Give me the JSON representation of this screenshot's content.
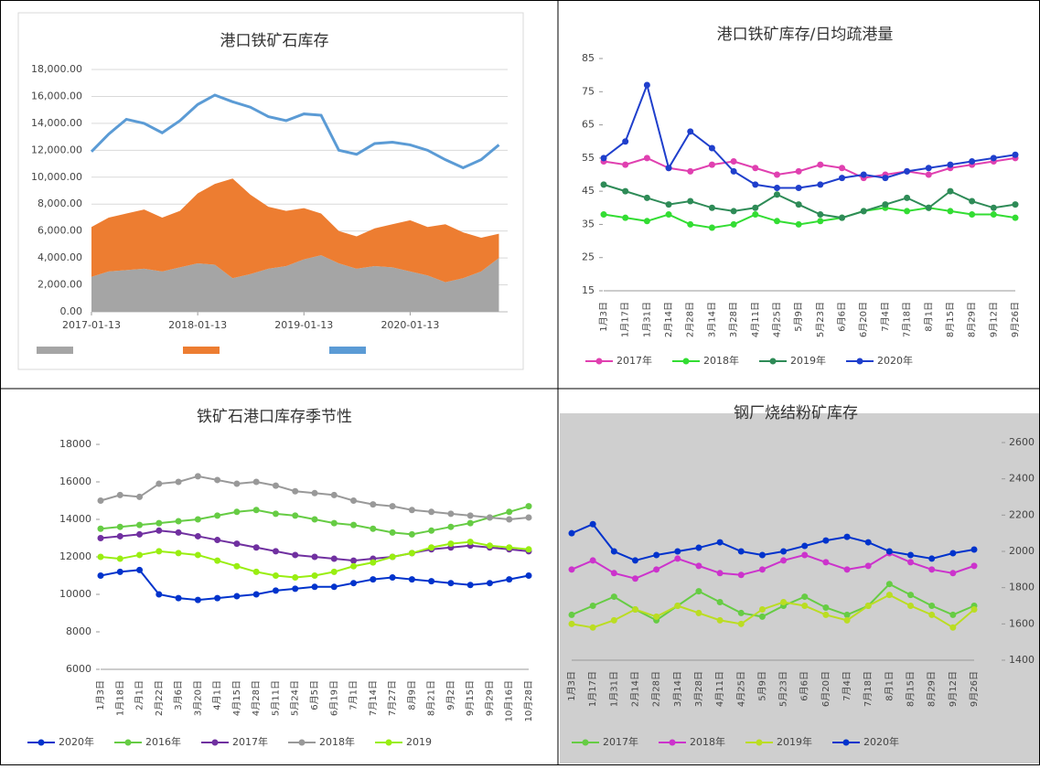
{
  "chart_data": [
    {
      "type": "area",
      "title": "港口铁矿石库存",
      "x": [
        "2017-01-13",
        "2017-03-13",
        "2017-05-13",
        "2017-07-13",
        "2017-09-13",
        "2017-11-13",
        "2018-01-13",
        "2018-03-13",
        "2018-05-13",
        "2018-07-13",
        "2018-09-13",
        "2018-11-13",
        "2019-01-13",
        "2019-03-13",
        "2019-05-13",
        "2019-07-13",
        "2019-09-13",
        "2019-11-13",
        "2020-01-13",
        "2020-03-13",
        "2020-05-13",
        "2020-07-13",
        "2020-09-13",
        "2020-11-13"
      ],
      "xlim": [
        "2017-01-13",
        "2020-12-13"
      ],
      "xticks": [
        "2017-01-13",
        "2018-01-13",
        "2019-01-13",
        "2020-01-13"
      ],
      "ylim": [
        0,
        18000
      ],
      "yticks": [
        {
          "value": 0,
          "label": "0.00"
        },
        {
          "value": 2000,
          "label": "2,000.00"
        },
        {
          "value": 4000,
          "label": "4,000.00"
        },
        {
          "value": 6000,
          "label": "6,000.00"
        },
        {
          "value": 8000,
          "label": "8,000.00"
        },
        {
          "value": 10000,
          "label": "10,000.00"
        },
        {
          "value": 12000,
          "label": "12,000.00"
        },
        {
          "value": 14000,
          "label": "14,000.00"
        },
        {
          "value": 16000,
          "label": "16,000.00"
        },
        {
          "value": 18000,
          "label": "18,000.00"
        }
      ],
      "grid": true,
      "series": [
        {
          "kind": "area",
          "color": "#a5a5a5",
          "values": [
            2600,
            3000,
            3100,
            3200,
            3000,
            3300,
            3600,
            3500,
            2500,
            2800,
            3200,
            3400,
            3900,
            4200,
            3600,
            3200,
            3400,
            3300,
            3000,
            2700,
            2200,
            2500,
            3000,
            4000
          ]
        },
        {
          "kind": "area",
          "color": "#ed7d31",
          "values": [
            3700,
            4000,
            4200,
            4400,
            4000,
            4200,
            5200,
            6000,
            7400,
            5900,
            4600,
            4100,
            3800,
            3100,
            2400,
            2400,
            2800,
            3200,
            3800,
            3600,
            4300,
            3400,
            2500,
            1800
          ]
        },
        {
          "kind": "line",
          "color": "#5b9bd5",
          "values": [
            11900,
            13200,
            14300,
            14000,
            13300,
            14200,
            15400,
            16100,
            15600,
            15200,
            14500,
            14200,
            14700,
            14600,
            12000,
            11700,
            12500,
            12600,
            12400,
            12000,
            11300,
            10700,
            11300,
            12400
          ]
        }
      ]
    },
    {
      "type": "line",
      "title": "港口铁矿库存/日均疏港量",
      "categories": [
        "1月3日",
        "1月17日",
        "1月31日",
        "2月14日",
        "2月28日",
        "3月14日",
        "3月28日",
        "4月11日",
        "4月25日",
        "5月9日",
        "5月23日",
        "6月6日",
        "6月20日",
        "7月4日",
        "7月18日",
        "8月1日",
        "8月15日",
        "8月29日",
        "9月12日",
        "9月26日"
      ],
      "ylim": [
        15,
        85
      ],
      "yticks": [
        15,
        25,
        35,
        45,
        55,
        65,
        75,
        85
      ],
      "grid": false,
      "series": [
        {
          "name": "2017年",
          "color": "#e040b0",
          "values": [
            54,
            53,
            55,
            52,
            51,
            53,
            54,
            52,
            50,
            51,
            53,
            52,
            49,
            50,
            51,
            50,
            52,
            53,
            54,
            55
          ]
        },
        {
          "name": "2018年",
          "color": "#33dd33",
          "values": [
            38,
            37,
            36,
            38,
            35,
            34,
            35,
            38,
            36,
            35,
            36,
            37,
            39,
            40,
            39,
            40,
            39,
            38,
            38,
            37
          ]
        },
        {
          "name": "2019年",
          "color": "#2e8b57",
          "values": [
            47,
            45,
            43,
            41,
            42,
            40,
            39,
            40,
            44,
            41,
            38,
            37,
            39,
            41,
            43,
            40,
            45,
            42,
            40,
            41
          ]
        },
        {
          "name": "2020年",
          "color": "#1f3fcc",
          "values": [
            55,
            60,
            77,
            52,
            63,
            58,
            51,
            47,
            46,
            46,
            47,
            49,
            50,
            49,
            51,
            52,
            53,
            54,
            55,
            56
          ]
        }
      ]
    },
    {
      "type": "line",
      "title": "铁矿石港口库存季节性",
      "categories": [
        "1月3日",
        "1月18日",
        "2月1日",
        "2月22日",
        "3月6日",
        "3月20日",
        "4月1日",
        "4月15日",
        "4月28日",
        "5月11日",
        "5月24日",
        "6月5日",
        "6月19日",
        "7月1日",
        "7月14日",
        "7月27日",
        "8月9日",
        "8月21日",
        "9月2日",
        "9月15日",
        "9月29日",
        "10月16日",
        "10月28日"
      ],
      "ylim": [
        6000,
        18000
      ],
      "yticks": [
        6000,
        8000,
        10000,
        12000,
        14000,
        16000,
        18000
      ],
      "grid": false,
      "series": [
        {
          "name": "2020年",
          "color": "#0033cc",
          "values": [
            11000,
            11200,
            11300,
            10000,
            9800,
            9700,
            9800,
            9900,
            10000,
            10200,
            10300,
            10400,
            10400,
            10600,
            10800,
            10900,
            10800,
            10700,
            10600,
            10500,
            10600,
            10800,
            11000
          ]
        },
        {
          "name": "2016年",
          "color": "#66cc44",
          "values": [
            13500,
            13600,
            13700,
            13800,
            13900,
            14000,
            14200,
            14400,
            14500,
            14300,
            14200,
            14000,
            13800,
            13700,
            13500,
            13300,
            13200,
            13400,
            13600,
            13800,
            14100,
            14400,
            14700
          ]
        },
        {
          "name": "2017年",
          "color": "#7030a0",
          "values": [
            13000,
            13100,
            13200,
            13400,
            13300,
            13100,
            12900,
            12700,
            12500,
            12300,
            12100,
            12000,
            11900,
            11800,
            11900,
            12000,
            12200,
            12400,
            12500,
            12600,
            12500,
            12400,
            12300
          ]
        },
        {
          "name": "2018年",
          "color": "#999999",
          "values": [
            15000,
            15300,
            15200,
            15900,
            16000,
            16300,
            16100,
            15900,
            16000,
            15800,
            15500,
            15400,
            15300,
            15000,
            14800,
            14700,
            14500,
            14400,
            14300,
            14200,
            14100,
            14000,
            14100
          ]
        },
        {
          "name": "2019",
          "color": "#99ee11",
          "values": [
            12000,
            11900,
            12100,
            12300,
            12200,
            12100,
            11800,
            11500,
            11200,
            11000,
            10900,
            11000,
            11200,
            11500,
            11700,
            12000,
            12200,
            12500,
            12700,
            12800,
            12600,
            12500,
            12400
          ]
        }
      ]
    },
    {
      "type": "line",
      "title": "钢厂烧结粉矿库存",
      "yaxis": "right",
      "categories": [
        "1月3日",
        "1月17日",
        "1月31日",
        "2月14日",
        "2月28日",
        "3月14日",
        "3月28日",
        "4月11日",
        "4月25日",
        "5月9日",
        "5月23日",
        "6月6日",
        "6月20日",
        "7月4日",
        "7月18日",
        "8月1日",
        "8月15日",
        "8月29日",
        "9月12日",
        "9月26日"
      ],
      "ylim": [
        1400,
        2600
      ],
      "yticks": [
        1400,
        1600,
        1800,
        2000,
        2200,
        2400,
        2600
      ],
      "grid": false,
      "series": [
        {
          "name": "2017年",
          "color": "#66cc44",
          "values": [
            1650,
            1700,
            1750,
            1680,
            1620,
            1700,
            1780,
            1720,
            1660,
            1640,
            1700,
            1750,
            1690,
            1650,
            1700,
            1820,
            1760,
            1700,
            1650,
            1700
          ]
        },
        {
          "name": "2018年",
          "color": "#cc33cc",
          "values": [
            1900,
            1950,
            1880,
            1850,
            1900,
            1960,
            1920,
            1880,
            1870,
            1900,
            1950,
            1980,
            1940,
            1900,
            1920,
            1990,
            1940,
            1900,
            1880,
            1920
          ]
        },
        {
          "name": "2019年",
          "color": "#bbdd22",
          "values": [
            1600,
            1580,
            1620,
            1680,
            1640,
            1700,
            1660,
            1620,
            1600,
            1680,
            1720,
            1700,
            1650,
            1620,
            1700,
            1760,
            1700,
            1650,
            1580,
            1680
          ]
        },
        {
          "name": "2020年",
          "color": "#0033cc",
          "values": [
            2100,
            2150,
            2000,
            1950,
            1980,
            2000,
            2020,
            2050,
            2000,
            1980,
            2000,
            2030,
            2060,
            2080,
            2050,
            2000,
            1980,
            1960,
            1990,
            2010
          ]
        }
      ]
    }
  ]
}
